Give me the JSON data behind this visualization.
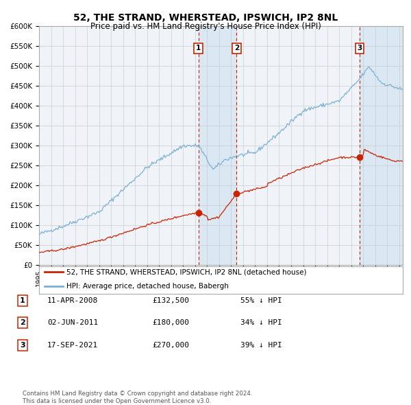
{
  "title": "52, THE STRAND, WHERSTEAD, IPSWICH, IP2 8NL",
  "subtitle": "Price paid vs. HM Land Registry's House Price Index (HPI)",
  "title_fontsize": 10,
  "subtitle_fontsize": 8.5,
  "hpi_color": "#7ab0d4",
  "price_color": "#cc2200",
  "bg_color": "#ffffff",
  "plot_bg_color": "#f0f4f8",
  "grid_color": "#cccccc",
  "highlight_color": "#c8dff0",
  "transactions": [
    {
      "id": 1,
      "date_num": 2008.28,
      "price": 132500,
      "label": "1"
    },
    {
      "id": 2,
      "date_num": 2011.45,
      "price": 180000,
      "label": "2"
    },
    {
      "id": 3,
      "date_num": 2021.71,
      "price": 270000,
      "label": "3"
    }
  ],
  "highlight_ranges": [
    [
      2008.28,
      2011.45
    ],
    [
      2021.71,
      2025.3
    ]
  ],
  "legend_entries": [
    {
      "label": "52, THE STRAND, WHERSTEAD, IPSWICH, IP2 8NL (detached house)",
      "color": "#cc2200"
    },
    {
      "label": "HPI: Average price, detached house, Babergh",
      "color": "#7ab0d4"
    }
  ],
  "table_rows": [
    {
      "num": "1",
      "date": "11-APR-2008",
      "price": "£132,500",
      "note": "55% ↓ HPI"
    },
    {
      "num": "2",
      "date": "02-JUN-2011",
      "price": "£180,000",
      "note": "34% ↓ HPI"
    },
    {
      "num": "3",
      "date": "17-SEP-2021",
      "price": "£270,000",
      "note": "39% ↓ HPI"
    }
  ],
  "footer": "Contains HM Land Registry data © Crown copyright and database right 2024.\nThis data is licensed under the Open Government Licence v3.0.",
  "ylim": [
    0,
    600000
  ],
  "xlim_start": 1995.0,
  "xlim_end": 2025.3
}
